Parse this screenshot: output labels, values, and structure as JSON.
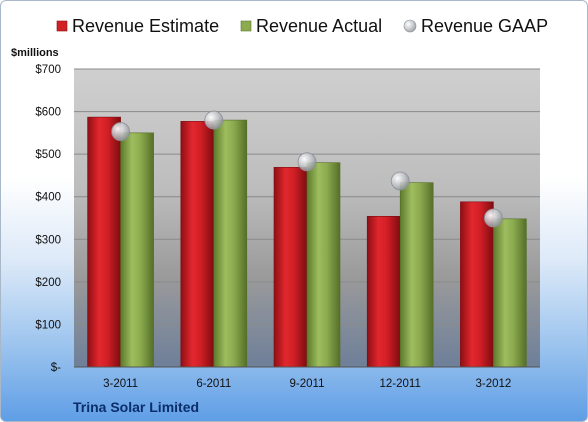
{
  "company": "Trina Solar Limited",
  "chart_data": {
    "type": "bar",
    "ylabel": "$millions",
    "ylim": [
      0,
      700
    ],
    "yticks": [
      0,
      100,
      200,
      300,
      400,
      500,
      600,
      700
    ],
    "ytick_labels": [
      "$-",
      "$100",
      "$200",
      "$300",
      "$400",
      "$500",
      "$600",
      "$700"
    ],
    "categories": [
      "3-2011",
      "6-2011",
      "9-2011",
      "12-2011",
      "3-2012"
    ],
    "series": [
      {
        "name": "Revenue Estimate",
        "kind": "bar",
        "color": "#d11f26",
        "values": [
          587,
          577,
          469,
          354,
          388
        ]
      },
      {
        "name": "Revenue Actual",
        "kind": "bar",
        "color": "#8cab4f",
        "values": [
          550,
          580,
          480,
          433,
          348
        ]
      },
      {
        "name": "Revenue GAAP",
        "kind": "marker",
        "color": "#b9bcc2",
        "values": [
          553,
          580,
          482,
          437,
          350
        ]
      }
    ],
    "grid": true,
    "legend_position": "top"
  }
}
